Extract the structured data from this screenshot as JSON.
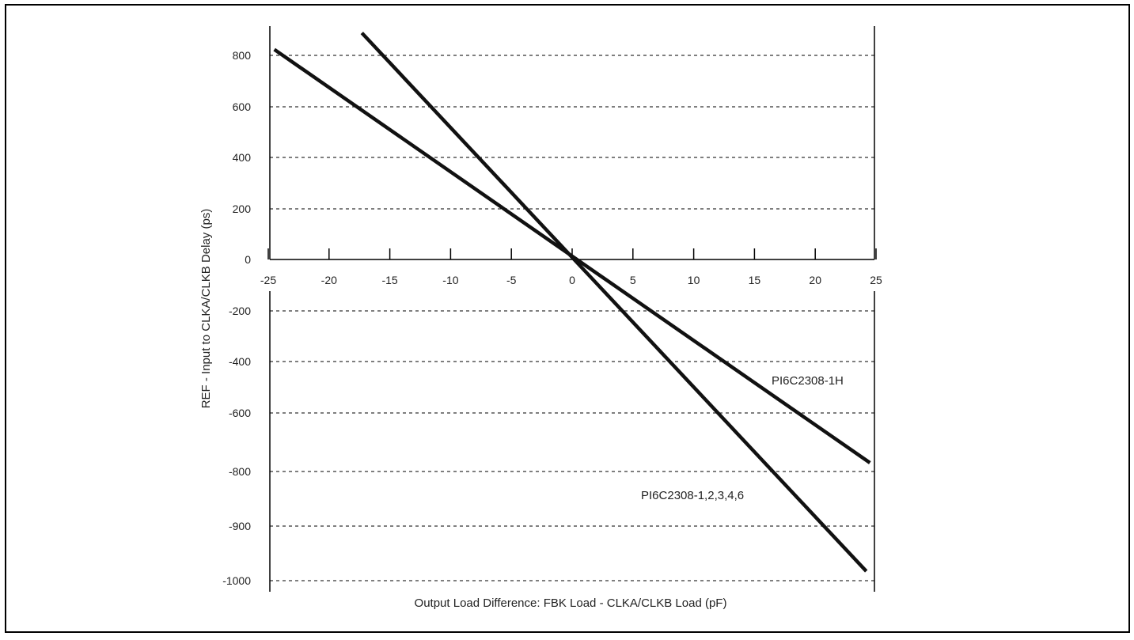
{
  "chart_data": {
    "type": "line",
    "title": "",
    "xlabel": "Output Load Difference: FBK Load - CLKA/CLKB Load (pF)",
    "ylabel": "REF - Input to CLKA/CLKB Delay (ps)",
    "xlim": [
      -25,
      25
    ],
    "x_ticks": [
      "-25",
      "-20",
      "-15",
      "-10",
      "-5",
      "0",
      "5",
      "10",
      "15",
      "20",
      "25"
    ],
    "y_ticks": [
      "800",
      "600",
      "400",
      "200",
      "0",
      "-200",
      "-400",
      "-600",
      "-800",
      "-900",
      "-1000"
    ],
    "y_tick_note": "tick labels are non-uniform: spacing is constant but the printed labels go -800, -900, -1000",
    "grid": "horizontal dashed lines at each y tick except 0",
    "legend": "none; series labelled directly on the plot",
    "series": [
      {
        "name": "PI6C2308-1H",
        "x": [
          -24.5,
          24.5
        ],
        "y": [
          823,
          -797
        ],
        "label_pos": "right, above line"
      },
      {
        "name": "PI6C2308-1,2,3,4,6",
        "x": [
          -17.3,
          24.2
        ],
        "y": [
          888,
          -1222
        ],
        "label_pos": "right, left of line"
      }
    ],
    "line_color": "#111111"
  }
}
